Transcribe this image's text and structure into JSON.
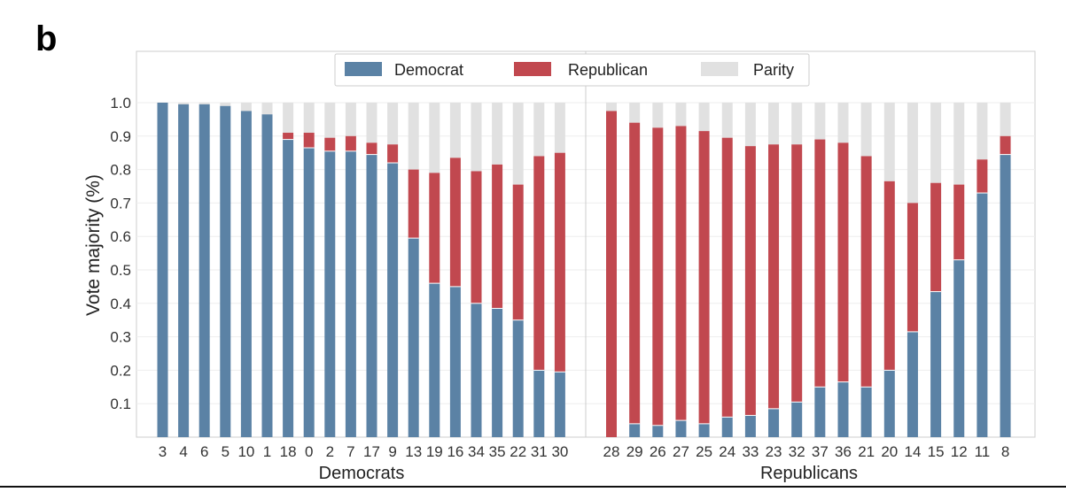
{
  "panel_label": "b",
  "colors": {
    "democrat": "#5b82a5",
    "republican": "#c1484f",
    "parity": "#e1e1e1"
  },
  "chart_data": {
    "type": "bar",
    "stacked": true,
    "ylabel": "Vote majority (%)",
    "ylim": [
      0,
      1.0
    ],
    "yticks": [
      "0.1",
      "0.2",
      "0.3",
      "0.4",
      "0.5",
      "0.6",
      "0.7",
      "0.8",
      "0.9",
      "1.0"
    ],
    "grid": true,
    "legend": {
      "position": "top-center",
      "entries": [
        "Democrat",
        "Republican",
        "Parity"
      ]
    },
    "series_names": [
      "Democrat",
      "Republican",
      "Parity"
    ],
    "panels": [
      {
        "group_label": "Democrats",
        "categories": [
          "3",
          "4",
          "6",
          "5",
          "10",
          "1",
          "18",
          "0",
          "2",
          "7",
          "17",
          "9",
          "13",
          "19",
          "16",
          "34",
          "35",
          "22",
          "31",
          "30"
        ],
        "democrat": [
          1.0,
          0.995,
          0.995,
          0.99,
          0.975,
          0.965,
          0.89,
          0.865,
          0.855,
          0.855,
          0.845,
          0.82,
          0.595,
          0.46,
          0.45,
          0.4,
          0.385,
          0.35,
          0.2,
          0.195
        ],
        "republican": [
          0.0,
          0.0,
          0.0,
          0.0,
          0.0,
          0.0,
          0.02,
          0.045,
          0.04,
          0.045,
          0.035,
          0.055,
          0.205,
          0.33,
          0.385,
          0.395,
          0.43,
          0.405,
          0.64,
          0.655
        ]
      },
      {
        "group_label": "Republicans",
        "categories": [
          "28",
          "29",
          "26",
          "27",
          "25",
          "24",
          "33",
          "23",
          "32",
          "37",
          "36",
          "21",
          "20",
          "14",
          "15",
          "12",
          "11",
          "8"
        ],
        "democrat": [
          0.0,
          0.04,
          0.035,
          0.05,
          0.04,
          0.06,
          0.065,
          0.085,
          0.105,
          0.15,
          0.165,
          0.15,
          0.2,
          0.315,
          0.435,
          0.53,
          0.73,
          0.845
        ],
        "republican": [
          0.975,
          0.9,
          0.89,
          0.88,
          0.875,
          0.835,
          0.805,
          0.79,
          0.77,
          0.74,
          0.715,
          0.69,
          0.565,
          0.385,
          0.325,
          0.225,
          0.1,
          0.055
        ]
      }
    ]
  }
}
